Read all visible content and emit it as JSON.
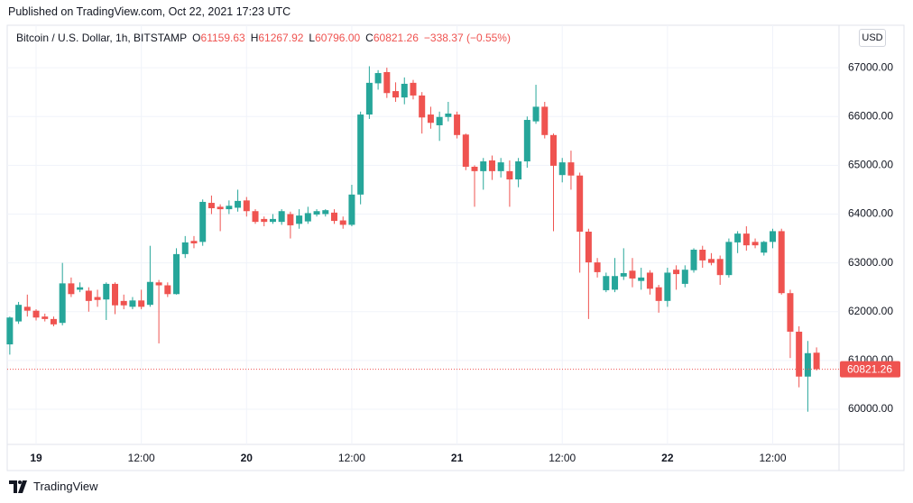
{
  "header": {
    "published": "Published on TradingView.com, Oct 22, 2021 17:23 UTC",
    "brand": "TradingView"
  },
  "chart_data": {
    "type": "candlestick",
    "title": "Bitcoin / U.S. Dollar, 1h, BITSTAMP",
    "ohlc_legend": [
      {
        "key": "O",
        "value": "61159.63"
      },
      {
        "key": "H",
        "value": "61267.92"
      },
      {
        "key": "L",
        "value": "60796.00"
      },
      {
        "key": "C",
        "value": "60821.26"
      }
    ],
    "change": "−338.37 (−0.55%)",
    "currency": "USD",
    "categories": [
      null,
      null,
      null,
      "19",
      null,
      null,
      null,
      null,
      null,
      null,
      null,
      null,
      null,
      null,
      null,
      "12:00",
      null,
      null,
      null,
      null,
      null,
      null,
      null,
      null,
      null,
      null,
      null,
      "20",
      null,
      null,
      null,
      null,
      null,
      null,
      null,
      null,
      null,
      null,
      null,
      "12:00",
      null,
      null,
      null,
      null,
      null,
      null,
      null,
      null,
      null,
      null,
      null,
      "21",
      null,
      null,
      null,
      null,
      null,
      null,
      null,
      null,
      null,
      null,
      null,
      "12:00",
      null,
      null,
      null,
      null,
      null,
      null,
      null,
      null,
      null,
      null,
      null,
      "22",
      null,
      null,
      null,
      null,
      null,
      null,
      null,
      null,
      null,
      null,
      null,
      "12:00",
      null,
      null,
      null,
      null,
      null
    ],
    "open": [
      61330,
      61800,
      62100,
      62020,
      61900,
      61850,
      61770,
      62580,
      62450,
      62430,
      62300,
      62250,
      62570,
      62220,
      62100,
      62230,
      62140,
      62600,
      62540,
      62360,
      63180,
      63450,
      63430,
      64230,
      64150,
      64100,
      64130,
      64280,
      64060,
      63900,
      63840,
      63840,
      64000,
      63800,
      63850,
      63990,
      64000,
      64030,
      63870,
      63780,
      64400,
      66040,
      66680,
      66910,
      66520,
      66390,
      66690,
      66430,
      66040,
      65820,
      65990,
      66040,
      65630,
      64970,
      64880,
      65100,
      64880,
      64880,
      64710,
      65080,
      65900,
      66200,
      65620,
      64800,
      65060,
      64790,
      63640,
      63010,
      62440,
      62450,
      62720,
      62840,
      62630,
      62800,
      62500,
      62220,
      62860,
      62570,
      62850,
      63270,
      63080,
      63080,
      62750,
      63420,
      63600,
      63430,
      63210,
      63430,
      63650,
      62380,
      61590,
      60670,
      61159.63
    ],
    "high": [
      61900,
      62200,
      62350,
      62050,
      61960,
      61900,
      63000,
      62700,
      62600,
      62500,
      62450,
      62600,
      62600,
      62350,
      62300,
      62450,
      63350,
      62650,
      62600,
      63300,
      63550,
      63550,
      64300,
      64380,
      64200,
      64280,
      64500,
      64350,
      64100,
      63950,
      64000,
      64100,
      64050,
      64100,
      64150,
      64100,
      64100,
      64100,
      63950,
      64600,
      66100,
      67030,
      66950,
      67000,
      66700,
      66800,
      66750,
      66500,
      66200,
      66100,
      66300,
      66100,
      65650,
      65000,
      65150,
      65200,
      65150,
      65100,
      65150,
      66000,
      66650,
      66300,
      65650,
      65150,
      65300,
      64850,
      63700,
      63100,
      62800,
      63100,
      63300,
      63100,
      62900,
      62850,
      62550,
      62900,
      62950,
      62950,
      63300,
      63350,
      63200,
      63150,
      63500,
      63650,
      63750,
      63500,
      63450,
      63700,
      63700,
      62450,
      61700,
      61400,
      61267.92
    ],
    "low": [
      61120,
      61750,
      61900,
      61820,
      61800,
      61700,
      61720,
      62300,
      62400,
      62000,
      62100,
      61830,
      61950,
      62050,
      62050,
      62050,
      62100,
      61350,
      62300,
      62350,
      63100,
      63300,
      63350,
      64000,
      63650,
      64000,
      64050,
      63950,
      63800,
      63750,
      63800,
      63780,
      63500,
      63700,
      63800,
      63950,
      63950,
      63800,
      63700,
      63750,
      64200,
      65950,
      66550,
      66380,
      66300,
      66250,
      66350,
      65650,
      65750,
      65500,
      65900,
      65550,
      64900,
      64150,
      64500,
      64700,
      64750,
      64150,
      64550,
      64950,
      65850,
      65550,
      63650,
      64650,
      64500,
      62800,
      61850,
      62700,
      62400,
      62400,
      62650,
      62500,
      62450,
      62350,
      61980,
      62100,
      62450,
      62500,
      62800,
      62900,
      62950,
      62550,
      62700,
      63200,
      63250,
      63300,
      63150,
      63300,
      62350,
      61050,
      60450,
      59950,
      60796
    ],
    "close": [
      61880,
      62140,
      62020,
      61880,
      61850,
      61740,
      62580,
      62360,
      62500,
      62220,
      62240,
      62570,
      62130,
      62130,
      62230,
      62100,
      62610,
      62540,
      62360,
      63180,
      63420,
      63400,
      64250,
      64120,
      64100,
      64170,
      64270,
      64060,
      63840,
      63840,
      63900,
      64060,
      63770,
      63970,
      64020,
      64060,
      64080,
      63860,
      63780,
      64400,
      66040,
      66690,
      66890,
      66480,
      66390,
      66670,
      66430,
      65980,
      65870,
      65990,
      66060,
      65620,
      64970,
      64880,
      65080,
      64880,
      65060,
      64710,
      65080,
      65930,
      66200,
      65620,
      64990,
      65060,
      64790,
      63640,
      63010,
      62810,
      62730,
      62730,
      62790,
      62680,
      62700,
      62470,
      62220,
      62800,
      62770,
      62860,
      63270,
      63050,
      63000,
      62750,
      63430,
      63600,
      63360,
      63360,
      63430,
      63650,
      62380,
      61590,
      60670,
      61150,
      60821.26
    ],
    "up_color": "#26a69a",
    "down_color": "#ef5350",
    "ylim": [
      59280,
      67870
    ],
    "yticks": [
      {
        "value": 60000,
        "label": "60000.00"
      },
      {
        "value": 61000,
        "label": "61000.00"
      },
      {
        "value": 62000,
        "label": "62000.00"
      },
      {
        "value": 63000,
        "label": "63000.00"
      },
      {
        "value": 64000,
        "label": "64000.00"
      },
      {
        "value": 65000,
        "label": "65000.00"
      },
      {
        "value": 66000,
        "label": "66000.00"
      },
      {
        "value": 67000,
        "label": "67000.00"
      }
    ],
    "grid": true,
    "last_price": {
      "value": 60821.26,
      "label": "60821.26"
    }
  }
}
